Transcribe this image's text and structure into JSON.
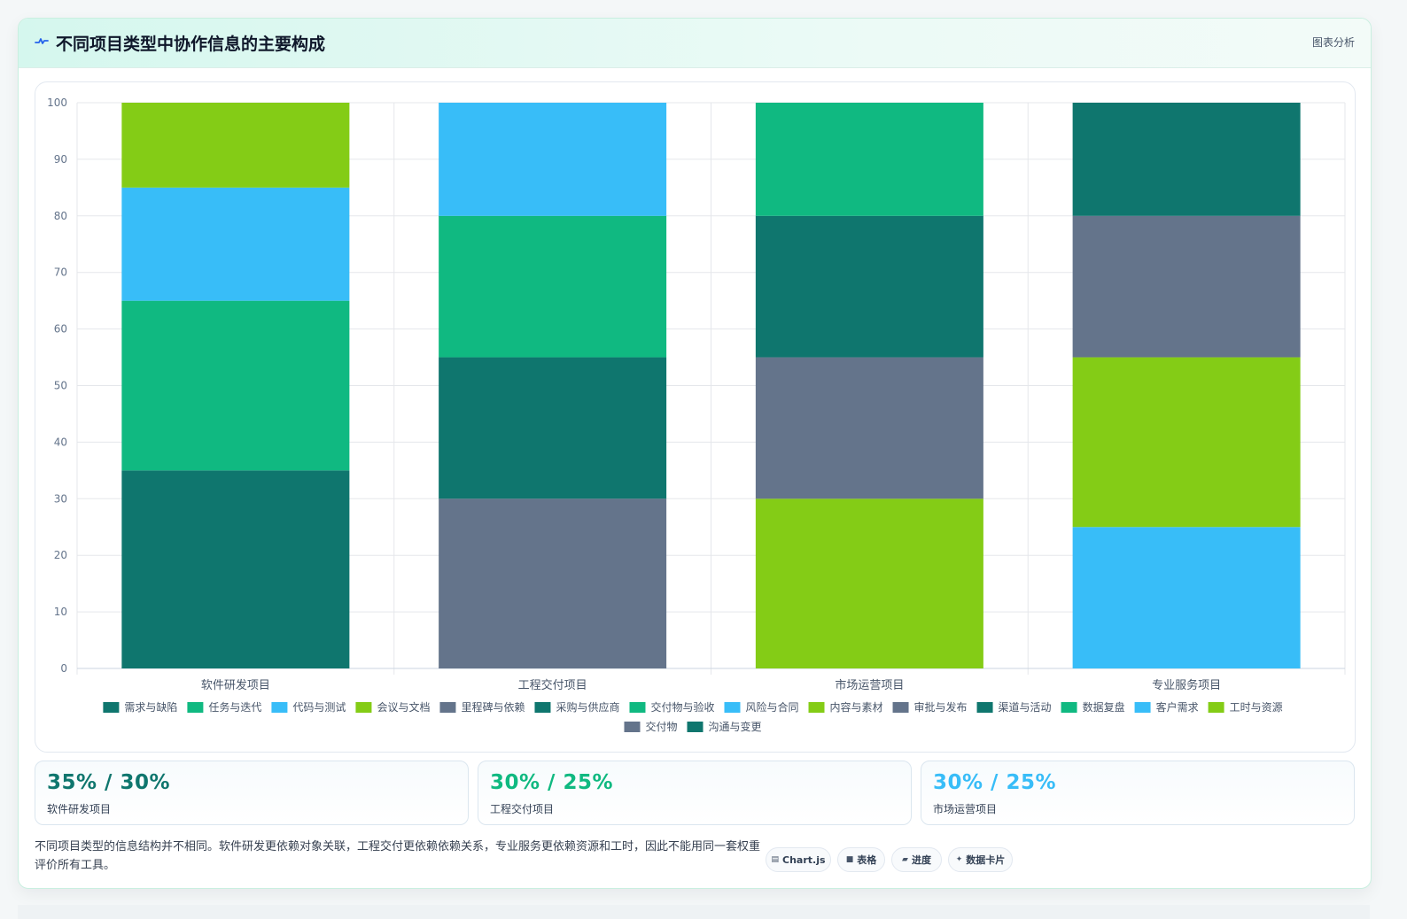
{
  "header": {
    "icon": "pulse-icon",
    "title": "不同项目类型中协作信息的主要构成",
    "tag": "图表分析"
  },
  "colors": {
    "teal": "#0f766e",
    "green": "#10b981",
    "sky": "#38bdf8",
    "lime": "#84cc16",
    "slate": "#64748b"
  },
  "chart_data": {
    "type": "bar",
    "stacked": true,
    "categories": [
      "软件研发项目",
      "工程交付项目",
      "市场运营项目",
      "专业服务项目"
    ],
    "ylim": [
      0,
      100
    ],
    "yticks": [
      0,
      10,
      20,
      30,
      40,
      50,
      60,
      70,
      80,
      90,
      100
    ],
    "grid": true,
    "legend_position": "bottom",
    "series": [
      {
        "name": "需求与缺陷",
        "color": "#0f766e",
        "values": [
          35,
          0,
          0,
          0
        ]
      },
      {
        "name": "任务与迭代",
        "color": "#10b981",
        "values": [
          30,
          0,
          0,
          0
        ]
      },
      {
        "name": "代码与测试",
        "color": "#38bdf8",
        "values": [
          20,
          0,
          0,
          0
        ]
      },
      {
        "name": "会议与文档",
        "color": "#84cc16",
        "values": [
          15,
          0,
          0,
          0
        ]
      },
      {
        "name": "里程碑与依赖",
        "color": "#64748b",
        "values": [
          0,
          30,
          0,
          0
        ]
      },
      {
        "name": "采购与供应商",
        "color": "#0f766e",
        "values": [
          0,
          25,
          0,
          0
        ]
      },
      {
        "name": "交付物与验收",
        "color": "#10b981",
        "values": [
          0,
          25,
          0,
          0
        ]
      },
      {
        "name": "风险与合同",
        "color": "#38bdf8",
        "values": [
          0,
          20,
          0,
          0
        ]
      },
      {
        "name": "内容与素材",
        "color": "#84cc16",
        "values": [
          0,
          0,
          30,
          0
        ]
      },
      {
        "name": "审批与发布",
        "color": "#64748b",
        "values": [
          0,
          0,
          25,
          0
        ]
      },
      {
        "name": "渠道与活动",
        "color": "#0f766e",
        "values": [
          0,
          0,
          25,
          0
        ]
      },
      {
        "name": "数据复盘",
        "color": "#10b981",
        "values": [
          0,
          0,
          20,
          0
        ]
      },
      {
        "name": "客户需求",
        "color": "#38bdf8",
        "values": [
          0,
          0,
          0,
          25
        ]
      },
      {
        "name": "工时与资源",
        "color": "#84cc16",
        "values": [
          0,
          0,
          0,
          30
        ]
      },
      {
        "name": "交付物",
        "color": "#64748b",
        "values": [
          0,
          0,
          0,
          25
        ]
      },
      {
        "name": "沟通与变更",
        "color": "#0f766e",
        "values": [
          0,
          0,
          0,
          20
        ]
      }
    ]
  },
  "stats": [
    {
      "value": "35% / 30%",
      "label": "软件研发项目",
      "color": "#0f766e"
    },
    {
      "value": "30% / 25%",
      "label": "工程交付项目",
      "color": "#10b981"
    },
    {
      "value": "30% / 25%",
      "label": "市场运营项目",
      "color": "#38bdf8"
    }
  ],
  "note": "不同项目类型的信息结构并不相同。软件研发更依赖对象关联，工程交付更依赖依赖关系，专业服务更依赖资源和工时，因此不能用同一套权重评价所有工具。",
  "chips": [
    {
      "icon": "chart-icon",
      "glyph": "▤",
      "label": "Chart.js"
    },
    {
      "icon": "table-icon",
      "glyph": "■",
      "label": "表格"
    },
    {
      "icon": "progress-icon",
      "glyph": "▰",
      "label": "进度"
    },
    {
      "icon": "sparkle-icon",
      "glyph": "✦",
      "label": "数据卡片"
    }
  ]
}
